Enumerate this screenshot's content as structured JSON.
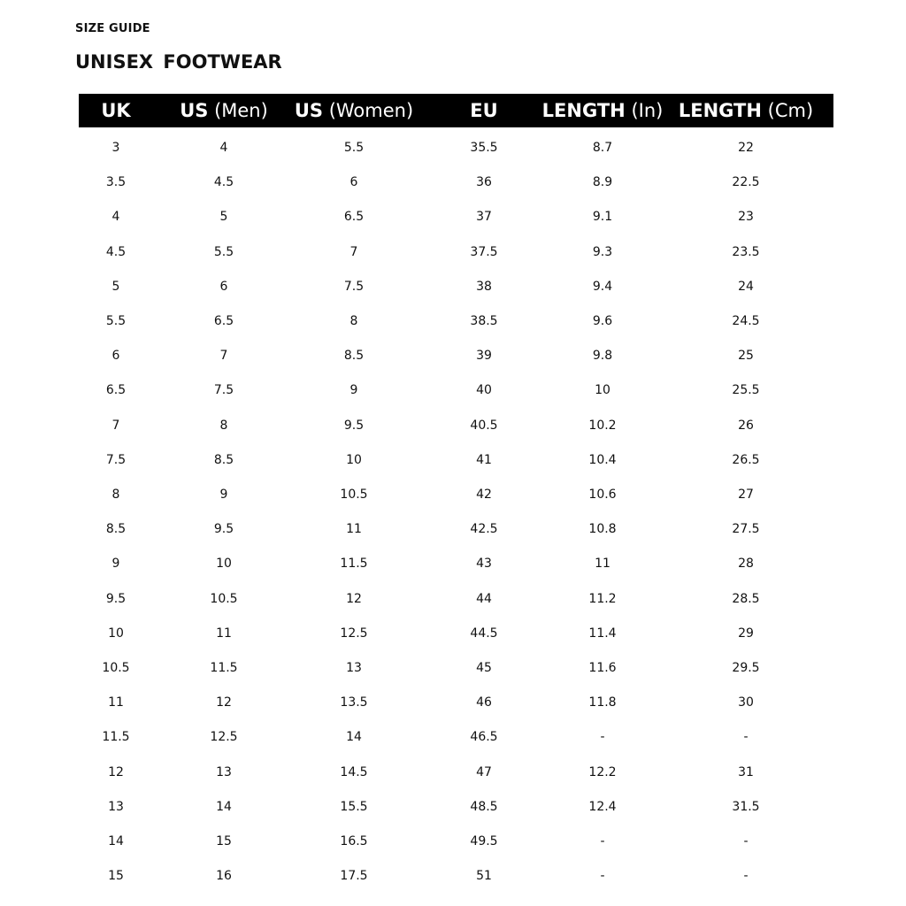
{
  "kicker": "SIZE GUIDE",
  "title": "UNISEX  FOOTWEAR",
  "columns": [
    {
      "bold": "UK",
      "normal": ""
    },
    {
      "bold": "US",
      "normal": "(Men)"
    },
    {
      "bold": "US",
      "normal": "(Women)"
    },
    {
      "bold": "EU",
      "normal": ""
    },
    {
      "bold": "LENGTH",
      "normal": "(In)"
    },
    {
      "bold": "LENGTH",
      "normal": "(Cm)"
    }
  ],
  "rows": [
    [
      "3",
      "4",
      "5.5",
      "35.5",
      "8.7",
      "22"
    ],
    [
      "3.5",
      "4.5",
      "6",
      "36",
      "8.9",
      "22.5"
    ],
    [
      "4",
      "5",
      "6.5",
      "37",
      "9.1",
      "23"
    ],
    [
      "4.5",
      "5.5",
      "7",
      "37.5",
      "9.3",
      "23.5"
    ],
    [
      "5",
      "6",
      "7.5",
      "38",
      "9.4",
      "24"
    ],
    [
      "5.5",
      "6.5",
      "8",
      "38.5",
      "9.6",
      "24.5"
    ],
    [
      "6",
      "7",
      "8.5",
      "39",
      "9.8",
      "25"
    ],
    [
      "6.5",
      "7.5",
      "9",
      "40",
      "10",
      "25.5"
    ],
    [
      "7",
      "8",
      "9.5",
      "40.5",
      "10.2",
      "26"
    ],
    [
      "7.5",
      "8.5",
      "10",
      "41",
      "10.4",
      "26.5"
    ],
    [
      "8",
      "9",
      "10.5",
      "42",
      "10.6",
      "27"
    ],
    [
      "8.5",
      "9.5",
      "11",
      "42.5",
      "10.8",
      "27.5"
    ],
    [
      "9",
      "10",
      "11.5",
      "43",
      "11",
      "28"
    ],
    [
      "9.5",
      "10.5",
      "12",
      "44",
      "11.2",
      "28.5"
    ],
    [
      "10",
      "11",
      "12.5",
      "44.5",
      "11.4",
      "29"
    ],
    [
      "10.5",
      "11.5",
      "13",
      "45",
      "11.6",
      "29.5"
    ],
    [
      "11",
      "12",
      "13.5",
      "46",
      "11.8",
      "30"
    ],
    [
      "11.5",
      "12.5",
      "14",
      "46.5",
      "-",
      "-"
    ],
    [
      "12",
      "13",
      "14.5",
      "47",
      "12.2",
      "31"
    ],
    [
      "13",
      "14",
      "15.5",
      "48.5",
      "12.4",
      "31.5"
    ],
    [
      "14",
      "15",
      "16.5",
      "49.5",
      "-",
      "-"
    ],
    [
      "15",
      "16",
      "17.5",
      "51",
      "-",
      "-"
    ]
  ]
}
